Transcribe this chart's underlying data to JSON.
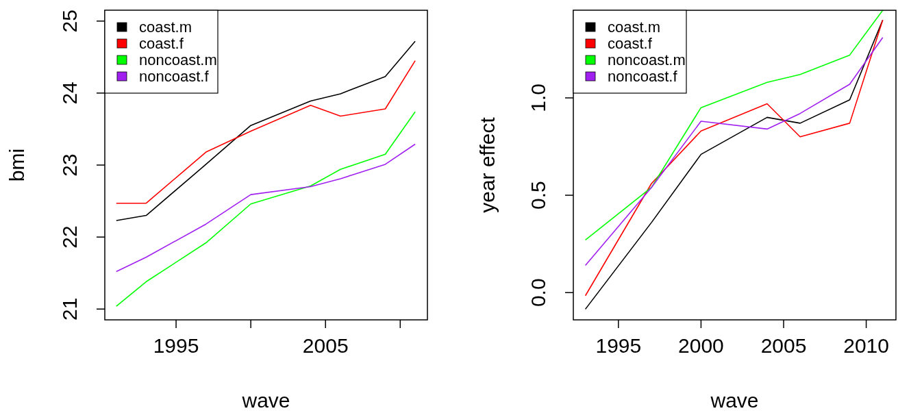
{
  "chart_data": [
    {
      "type": "line",
      "xlabel": "wave",
      "ylabel": "bmi",
      "x": [
        1991,
        1993,
        1997,
        2000,
        2004,
        2006,
        2009,
        2011
      ],
      "xlim": [
        1990.23,
        2011.82
      ],
      "ylim": [
        20.85,
        25.15
      ],
      "xticks": [
        1995,
        {
          "value": 2000,
          "label": null
        },
        2005,
        {
          "value": 2010,
          "label": null
        }
      ],
      "yticks": [
        21,
        22,
        23,
        24,
        25
      ],
      "legend": "top left",
      "series": [
        {
          "name": "coast.m",
          "color": "#000000",
          "values": [
            22.23,
            22.3,
            23.01,
            23.55,
            23.89,
            23.99,
            24.23,
            24.72
          ]
        },
        {
          "name": "coast.f",
          "color": "#ff0000",
          "values": [
            22.47,
            22.47,
            23.18,
            23.47,
            23.83,
            23.68,
            23.78,
            24.45
          ]
        },
        {
          "name": "noncoast.m",
          "color": "#00ff00",
          "values": [
            21.04,
            21.38,
            21.92,
            22.46,
            22.71,
            22.94,
            23.15,
            23.74
          ]
        },
        {
          "name": "noncoast.f",
          "color": "#a020f0",
          "values": [
            21.52,
            21.72,
            22.18,
            22.59,
            22.7,
            22.81,
            23.01,
            23.29
          ]
        }
      ]
    },
    {
      "type": "line",
      "xlabel": "wave",
      "ylabel": "year effect",
      "x": [
        1993,
        1997,
        2000,
        2004,
        2006,
        2009,
        2011
      ],
      "xlim": [
        1992.27,
        2011.8
      ],
      "ylim": [
        -0.14,
        1.45
      ],
      "xticks": [
        1995,
        2000,
        2005,
        2010
      ],
      "yticks": [
        {
          "value": 0,
          "label": "0.0"
        },
        {
          "value": 0.5,
          "label": "0.5"
        },
        {
          "value": 1,
          "label": "1.0"
        }
      ],
      "legend": "top left",
      "series": [
        {
          "name": "coast.m",
          "color": "#000000",
          "values": [
            -0.085,
            0.36,
            0.71,
            0.9,
            0.87,
            0.99,
            1.4
          ]
        },
        {
          "name": "coast.f",
          "color": "#ff0000",
          "values": [
            -0.016,
            0.56,
            0.83,
            0.97,
            0.8,
            0.87,
            1.4
          ]
        },
        {
          "name": "noncoast.m",
          "color": "#00ff00",
          "values": [
            0.27,
            0.54,
            0.95,
            1.08,
            1.12,
            1.22,
            1.45
          ]
        },
        {
          "name": "noncoast.f",
          "color": "#a020f0",
          "values": [
            0.14,
            0.54,
            0.88,
            0.84,
            0.92,
            1.07,
            1.31
          ]
        }
      ]
    }
  ]
}
